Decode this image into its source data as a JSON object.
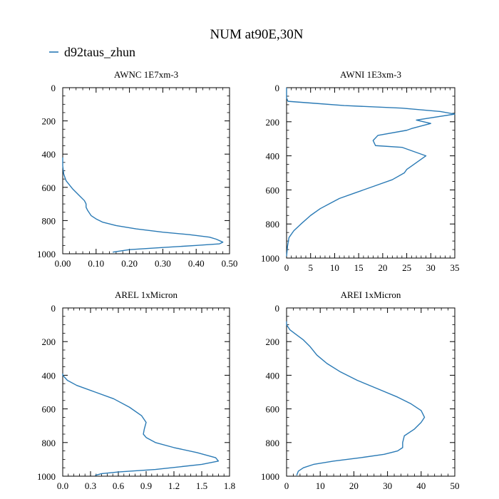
{
  "title": "NUM at90E,30N",
  "legend": {
    "label": "d92taus_zhun",
    "color": "#2a7ab5"
  },
  "line_color": "#2a7ab5",
  "chart_data": [
    {
      "type": "line",
      "title": "AWNC  1E7xm-3",
      "xlim": [
        0,
        0.5
      ],
      "ylim": [
        1000,
        0
      ],
      "x_ticks": [
        "0.00",
        "0.10",
        "0.20",
        "0.30",
        "0.40",
        "0.50"
      ],
      "x_tick_values": [
        0,
        0.1,
        0.2,
        0.3,
        0.4,
        0.5
      ],
      "y_ticks": [
        "0",
        "200",
        "400",
        "600",
        "800",
        "1000"
      ],
      "y_tick_values": [
        0,
        200,
        400,
        600,
        800,
        1000
      ],
      "series": [
        {
          "x": [
            0.0,
            0.0,
            0.003,
            0.01,
            0.03,
            0.05,
            0.065,
            0.07,
            0.07,
            0.075,
            0.085,
            0.1,
            0.12,
            0.16,
            0.22,
            0.3,
            0.38,
            0.44,
            0.46,
            0.48,
            0.47,
            0.4,
            0.3,
            0.2,
            0.15
          ],
          "y": [
            420,
            470,
            520,
            560,
            610,
            650,
            680,
            700,
            720,
            740,
            770,
            790,
            810,
            830,
            850,
            870,
            885,
            900,
            912,
            930,
            940,
            950,
            962,
            975,
            990
          ]
        }
      ]
    },
    {
      "type": "line",
      "title": "AWNI  1E3xm-3",
      "xlim": [
        0,
        35
      ],
      "ylim": [
        1000,
        0
      ],
      "x_ticks": [
        "0",
        "5",
        "10",
        "15",
        "20",
        "25",
        "30",
        "35"
      ],
      "x_tick_values": [
        0,
        5,
        10,
        15,
        20,
        25,
        30,
        35
      ],
      "y_ticks": [
        "0",
        "200",
        "400",
        "600",
        "800",
        "1000"
      ],
      "y_tick_values": [
        0,
        200,
        400,
        600,
        800,
        1000
      ],
      "series": [
        {
          "x": [
            0,
            0,
            0.3,
            5,
            12,
            24,
            32,
            35,
            27,
            30,
            26,
            25,
            19,
            18,
            18.5,
            24,
            29,
            26,
            25,
            24.5,
            22,
            18,
            14,
            11,
            9,
            7,
            5,
            3,
            1.5,
            0.5,
            0.2,
            0
          ],
          "y": [
            0,
            60,
            80,
            90,
            105,
            120,
            140,
            155,
            190,
            210,
            240,
            250,
            280,
            310,
            340,
            350,
            400,
            460,
            480,
            500,
            540,
            580,
            620,
            650,
            680,
            710,
            750,
            800,
            840,
            880,
            930,
            990
          ]
        }
      ]
    },
    {
      "type": "line",
      "title": "AREL  1xMicron",
      "xlim": [
        0,
        1.8
      ],
      "ylim": [
        1000,
        0
      ],
      "x_ticks": [
        "0.0",
        "0.3",
        "0.6",
        "0.9",
        "1.2",
        "1.5",
        "1.8"
      ],
      "x_tick_values": [
        0,
        0.3,
        0.6,
        0.9,
        1.2,
        1.5,
        1.8
      ],
      "y_ticks": [
        "0",
        "200",
        "400",
        "600",
        "800",
        "1000"
      ],
      "y_tick_values": [
        0,
        200,
        400,
        600,
        800,
        1000
      ],
      "series": [
        {
          "x": [
            0.0,
            0.0,
            0.05,
            0.15,
            0.35,
            0.55,
            0.72,
            0.85,
            0.9,
            0.88,
            0.87,
            0.9,
            1.0,
            1.2,
            1.45,
            1.65,
            1.68,
            1.5,
            1.0,
            0.6,
            0.42,
            0.35
          ],
          "y": [
            390,
            400,
            430,
            460,
            500,
            540,
            590,
            640,
            680,
            720,
            750,
            770,
            800,
            830,
            860,
            890,
            910,
            930,
            960,
            975,
            985,
            995
          ]
        }
      ]
    },
    {
      "type": "line",
      "title": "AREI  1xMicron",
      "xlim": [
        0,
        50
      ],
      "ylim": [
        1000,
        0
      ],
      "x_ticks": [
        "0",
        "10",
        "20",
        "30",
        "40",
        "50"
      ],
      "x_tick_values": [
        0,
        10,
        20,
        30,
        40,
        50
      ],
      "y_ticks": [
        "0",
        "200",
        "400",
        "600",
        "800",
        "1000"
      ],
      "y_tick_values": [
        0,
        200,
        400,
        600,
        800,
        1000
      ],
      "series": [
        {
          "x": [
            0,
            0,
            1,
            3,
            5,
            7,
            9,
            12,
            16,
            21,
            27,
            33,
            37,
            40,
            41,
            40,
            38,
            35,
            34.5,
            34.5,
            33,
            29,
            22,
            14,
            8,
            5,
            3.5,
            3
          ],
          "y": [
            80,
            100,
            130,
            160,
            190,
            230,
            280,
            330,
            380,
            430,
            480,
            530,
            570,
            610,
            650,
            680,
            720,
            760,
            800,
            830,
            850,
            870,
            890,
            910,
            930,
            950,
            970,
            995
          ]
        }
      ]
    }
  ]
}
